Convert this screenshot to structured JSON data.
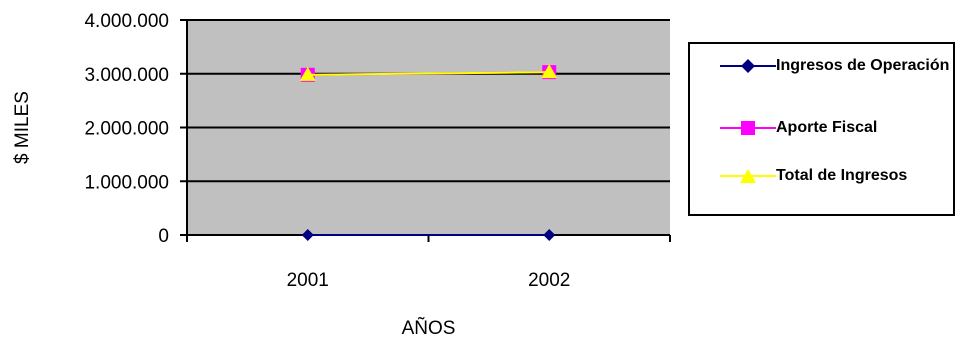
{
  "chart_data": {
    "type": "line",
    "title": "",
    "xlabel": "AÑOS",
    "ylabel": "$ MILES",
    "categories": [
      "2001",
      "2002"
    ],
    "ylim": [
      0,
      4000000
    ],
    "y_ticks": [
      0,
      1000000,
      2000000,
      3000000,
      4000000
    ],
    "y_tick_labels": [
      "0",
      "1.000.000",
      "2.000.000",
      "3.000.000",
      "4.000.000"
    ],
    "grid": true,
    "plot_background": "#c0c0c0",
    "legend_position": "right",
    "series": [
      {
        "name": "Ingresos de Operación",
        "values": [
          0,
          0
        ],
        "color": "#000080",
        "marker": "diamond"
      },
      {
        "name": "Aporte Fiscal",
        "values": [
          2980000,
          3030000
        ],
        "color": "#ff00ff",
        "marker": "square"
      },
      {
        "name": "Total de Ingresos",
        "values": [
          2980000,
          3030000
        ],
        "color": "#ffff00",
        "marker": "triangle"
      }
    ]
  }
}
